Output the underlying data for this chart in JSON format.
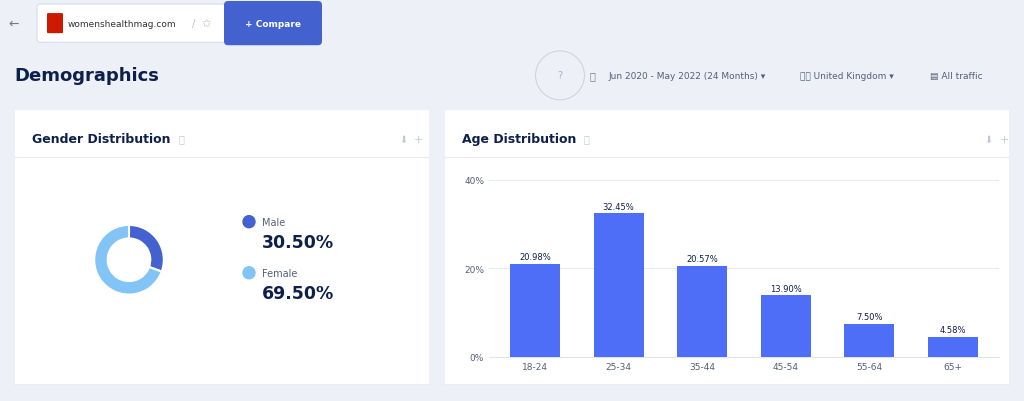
{
  "page_bg": "#edf0f7",
  "card_bg": "#ffffff",
  "browser_bg": "#f8f9fb",
  "title_bg": "#ffffff",
  "main_title": "Demographics",
  "gender_title": "Gender Distribution",
  "age_title": "Age Distribution",
  "male_pct": 30.5,
  "female_pct": 69.5,
  "male_color": "#4362d0",
  "female_color": "#82c4f5",
  "age_categories": [
    "18-24",
    "25-34",
    "35-44",
    "45-54",
    "55-64",
    "65+"
  ],
  "age_values": [
    20.98,
    32.45,
    20.57,
    13.9,
    7.5,
    4.58
  ],
  "bar_color": "#4f6ef7",
  "yticks": [
    0,
    20,
    40
  ],
  "ytick_labels": [
    "0%",
    "20%",
    "40%"
  ],
  "ylim": [
    0,
    43
  ],
  "text_dark": "#0d1f4c",
  "text_mid": "#555f7a",
  "text_light": "#aab2c8",
  "url_text": "womenshealthmag.com",
  "compare_btn_color": "#4362d0",
  "date_text": "Jun 2020 - May 2022 (24 Months)",
  "country_text": "United Kingdom",
  "traffic_text": "All traffic"
}
